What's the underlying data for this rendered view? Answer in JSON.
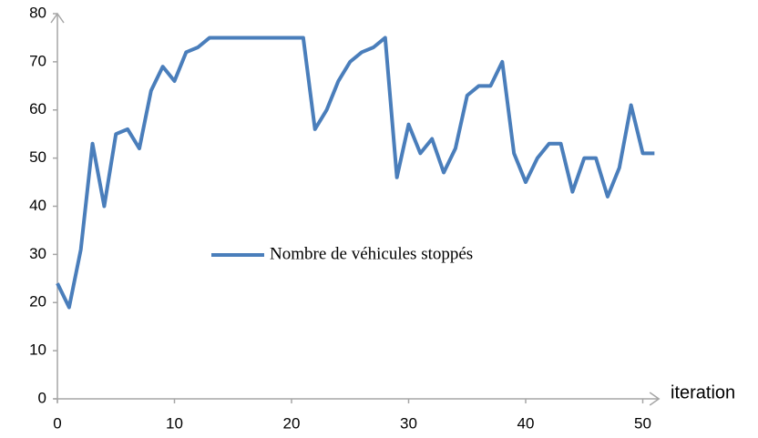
{
  "chart_data": {
    "type": "line",
    "x": [
      0,
      1,
      2,
      3,
      4,
      5,
      6,
      7,
      8,
      9,
      10,
      11,
      12,
      13,
      14,
      15,
      16,
      17,
      18,
      19,
      20,
      21,
      22,
      23,
      24,
      25,
      26,
      27,
      28,
      29,
      30,
      31,
      32,
      33,
      34,
      35,
      36,
      37,
      38,
      39,
      40,
      41,
      42,
      43,
      44,
      45,
      46,
      47,
      48,
      49,
      50,
      51
    ],
    "series": [
      {
        "name": "Nombre de véhicules stoppés",
        "color": "#4a7ebb",
        "values": [
          24,
          19,
          31,
          53,
          40,
          55,
          56,
          52,
          64,
          69,
          66,
          72,
          73,
          75,
          75,
          75,
          75,
          75,
          75,
          75,
          75,
          75,
          56,
          60,
          66,
          70,
          72,
          73,
          75,
          46,
          57,
          51,
          54,
          47,
          52,
          63,
          65,
          65,
          70,
          51,
          45,
          50,
          53,
          53,
          43,
          50,
          50,
          42,
          48,
          61,
          51,
          51
        ]
      }
    ],
    "x_label": "iteration",
    "xlim": [
      0,
      52
    ],
    "xticks": [
      0,
      10,
      20,
      30,
      40,
      50
    ],
    "ylim": [
      0,
      80
    ],
    "yticks": [
      0,
      10,
      20,
      30,
      40,
      50,
      60,
      70,
      80
    ],
    "grid": false,
    "legend": "center"
  }
}
